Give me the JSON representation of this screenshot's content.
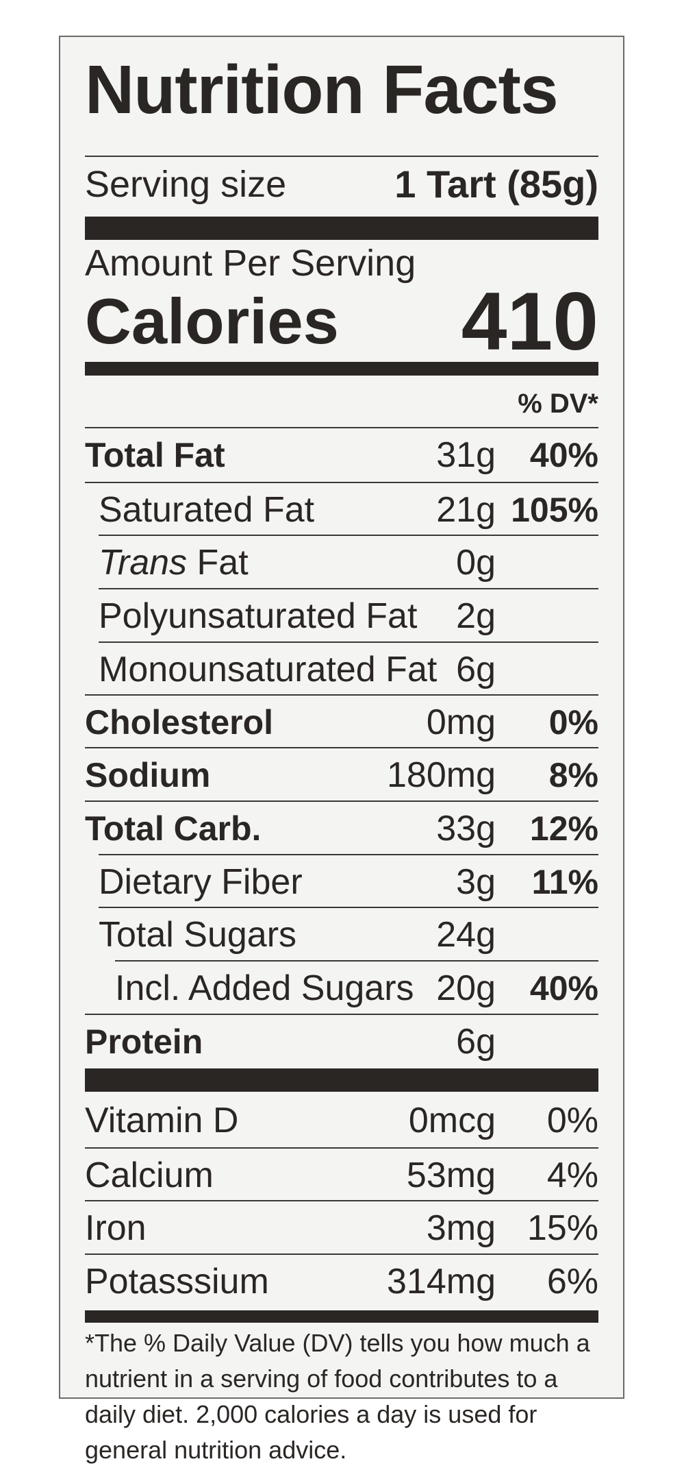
{
  "title": "Nutrition Facts",
  "serving": {
    "label": "Serving size",
    "value": "1 Tart (85g)"
  },
  "amount_per_serving": "Amount Per Serving",
  "calories": {
    "label": "Calories",
    "value": "410"
  },
  "dv_header": "% DV*",
  "nutrients": [
    {
      "name": "Total Fat",
      "amount": "31g",
      "dv": "40%"
    },
    {
      "name": "Saturated Fat",
      "amount": "21g",
      "dv": "105%"
    },
    {
      "name_italic": "Trans",
      "name": " Fat",
      "amount": "0g",
      "dv": ""
    },
    {
      "name": "Polyunsaturated Fat",
      "amount": "2g",
      "dv": ""
    },
    {
      "name": "Monounsaturated Fat",
      "amount": "6g",
      "dv": ""
    },
    {
      "name": "Cholesterol",
      "amount": "0mg",
      "dv": "0%"
    },
    {
      "name": "Sodium",
      "amount": "180mg",
      "dv": "8%"
    },
    {
      "name": "Total Carb.",
      "amount": "33g",
      "dv": "12%"
    },
    {
      "name": "Dietary Fiber",
      "amount": "3g",
      "dv": "11%"
    },
    {
      "name": "Total Sugars",
      "amount": "24g",
      "dv": ""
    },
    {
      "name": "Incl. Added Sugars",
      "amount": "20g",
      "dv": "40%"
    },
    {
      "name": "Protein",
      "amount": "6g",
      "dv": ""
    }
  ],
  "vitamins": [
    {
      "name": "Vitamin D",
      "amount": "0mcg",
      "dv": "0%"
    },
    {
      "name": "Calcium",
      "amount": "53mg",
      "dv": "4%"
    },
    {
      "name": "Iron",
      "amount": "3mg",
      "dv": "15%"
    },
    {
      "name": "Potasssium",
      "amount": "314mg",
      "dv": "6%"
    }
  ],
  "footnote": "*The % Daily Value (DV) tells you how much a nutrient in a serving of food contributes to a daily diet. 2,000 calories a day is used for general nutrition advice."
}
